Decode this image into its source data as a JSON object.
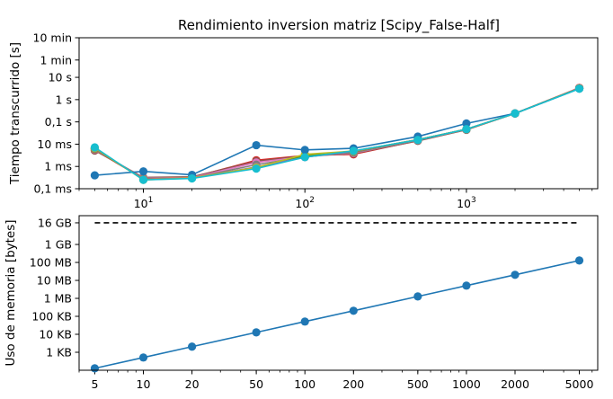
{
  "chart_data": [
    {
      "type": "line",
      "title": "Rendimiento inversion matriz [Scipy_False-Half]",
      "ylabel": "Tiempo transcurrido [s]",
      "xlabel": "",
      "x_scale": "log",
      "y_scale": "log",
      "xlim": [
        4,
        6500
      ],
      "ylim": [
        0.0001,
        600
      ],
      "x_ticks": [
        {
          "value": 10,
          "base": "10",
          "exp": "1"
        },
        {
          "value": 100,
          "base": "10",
          "exp": "2"
        },
        {
          "value": 1000,
          "base": "10",
          "exp": "3"
        }
      ],
      "y_ticks": [
        {
          "value": 0.0001,
          "label": "0,1 ms"
        },
        {
          "value": 0.001,
          "label": "1 ms"
        },
        {
          "value": 0.01,
          "label": "10 ms"
        },
        {
          "value": 0.1,
          "label": "0,1 s"
        },
        {
          "value": 1,
          "label": "1 s"
        },
        {
          "value": 10,
          "label": "10 s"
        },
        {
          "value": 60,
          "label": "1 min"
        },
        {
          "value": 600,
          "label": "10 min"
        }
      ],
      "x": [
        5,
        10,
        20,
        50,
        100,
        200,
        500,
        1000,
        2000,
        5000
      ],
      "series": [
        {
          "color": "#d62728",
          "values": [
            0.0055,
            0.00028,
            0.00032,
            0.0019,
            0.0031,
            0.0035,
            0.0145,
            0.045,
            0.24,
            3.4
          ]
        },
        {
          "color": "#8c564b",
          "values": [
            0.0052,
            0.00032,
            0.00034,
            0.0017,
            0.003,
            0.0038,
            0.014,
            0.044,
            0.24,
            3.3
          ]
        },
        {
          "color": "#e377c2",
          "values": [
            0.0058,
            0.0003,
            0.00031,
            0.0015,
            0.0028,
            0.004,
            0.015,
            0.046,
            0.24,
            3.3
          ]
        },
        {
          "color": "#7f7f7f",
          "values": [
            0.006,
            0.00029,
            0.0003,
            0.0012,
            0.0027,
            0.0042,
            0.015,
            0.046,
            0.24,
            3.2
          ]
        },
        {
          "color": "#ff7f0e",
          "values": [
            0.0062,
            0.00027,
            0.00031,
            0.0009,
            0.0033,
            0.0046,
            0.016,
            0.047,
            0.24,
            3.2
          ]
        },
        {
          "color": "#2ca02c",
          "values": [
            0.0064,
            0.00026,
            0.0003,
            0.0009,
            0.0029,
            0.0047,
            0.016,
            0.047,
            0.24,
            3.2
          ]
        },
        {
          "color": "#9467bd",
          "values": [
            0.0066,
            0.00026,
            0.0003,
            0.00095,
            0.0026,
            0.0048,
            0.016,
            0.047,
            0.24,
            3.2
          ]
        },
        {
          "color": "#bcbd22",
          "values": [
            0.0068,
            0.00025,
            0.0003,
            0.0009,
            0.0035,
            0.0049,
            0.016,
            0.047,
            0.24,
            3.2
          ]
        },
        {
          "color": "#1f77b4",
          "values": [
            0.0004,
            0.0006,
            0.00042,
            0.009,
            0.0055,
            0.0065,
            0.022,
            0.085,
            0.24,
            3.1
          ]
        },
        {
          "color": "#17becf",
          "values": [
            0.0072,
            0.00025,
            0.00029,
            0.0008,
            0.0026,
            0.005,
            0.0155,
            0.047,
            0.24,
            3.1
          ]
        }
      ]
    },
    {
      "type": "line",
      "title": "",
      "ylabel": "Uso de memoria [bytes]",
      "xlabel": "",
      "x_scale": "log",
      "y_scale": "log",
      "xlim": [
        4,
        6500
      ],
      "ylim": [
        100,
        40000000000
      ],
      "x_ticks": [
        {
          "value": 5,
          "label": "5"
        },
        {
          "value": 10,
          "label": "10"
        },
        {
          "value": 20,
          "label": "20"
        },
        {
          "value": 50,
          "label": "50"
        },
        {
          "value": 100,
          "label": "100"
        },
        {
          "value": 200,
          "label": "200"
        },
        {
          "value": 500,
          "label": "500"
        },
        {
          "value": 1000,
          "label": "1000"
        },
        {
          "value": 2000,
          "label": "2000"
        },
        {
          "value": 5000,
          "label": "5000"
        }
      ],
      "y_ticks": [
        {
          "value": 1000,
          "label": "1 KB"
        },
        {
          "value": 10000,
          "label": "10 KB"
        },
        {
          "value": 100000,
          "label": "100 KB"
        },
        {
          "value": 1000000,
          "label": "1 MB"
        },
        {
          "value": 10000000,
          "label": "10 MB"
        },
        {
          "value": 100000000,
          "label": "100 MB"
        },
        {
          "value": 1000000000,
          "label": "1 GB"
        },
        {
          "value": 16000000000,
          "label": "16 GB"
        }
      ],
      "reference_line": {
        "value": 16000000000,
        "style": "dashed",
        "color": "#000000"
      },
      "x": [
        5,
        10,
        20,
        50,
        100,
        200,
        500,
        1000,
        2000,
        5000
      ],
      "series": [
        {
          "color": "#1f77b4",
          "values": [
            128,
            512,
            2048,
            12800,
            51200,
            204800,
            1280000,
            5120000,
            20480000,
            128000000
          ]
        }
      ]
    }
  ]
}
